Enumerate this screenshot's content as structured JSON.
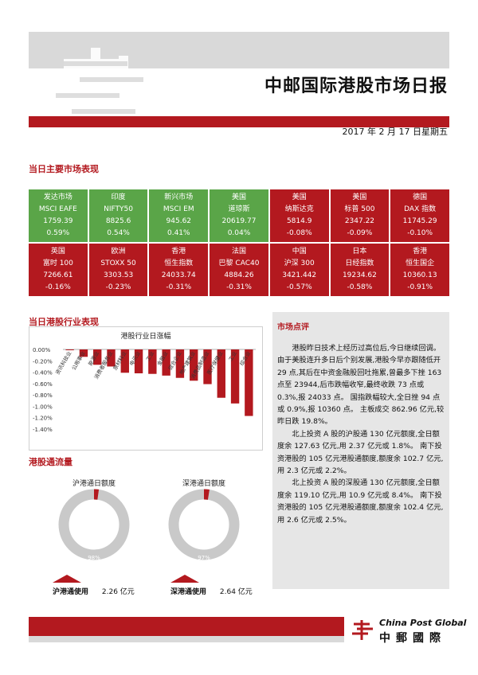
{
  "header": {
    "title": "中邮国际港股市场日报",
    "date": "2017 年 2 月 17 日星期五"
  },
  "sections": {
    "market": "当日主要市场表现",
    "industry": "当日港股行业表现",
    "flow": "港股通流量",
    "comment": "市场点评"
  },
  "markets": [
    {
      "region": "发达市场",
      "index": "MSCI EAFE",
      "value": "1759.39",
      "change": "0.59%",
      "dir": "up"
    },
    {
      "region": "印度",
      "index": "NIFTY50",
      "value": "8825.6",
      "change": "0.54%",
      "dir": "up"
    },
    {
      "region": "新兴市场",
      "index": "MSCI EM",
      "value": "945.62",
      "change": "0.41%",
      "dir": "up"
    },
    {
      "region": "美国",
      "index": "道琼斯",
      "value": "20619.77",
      "change": "0.04%",
      "dir": "up"
    },
    {
      "region": "美国",
      "index": "纳斯达克",
      "value": "5814.9",
      "change": "-0.08%",
      "dir": "down"
    },
    {
      "region": "美国",
      "index": "标普 500",
      "value": "2347.22",
      "change": "-0.09%",
      "dir": "down"
    },
    {
      "region": "德国",
      "index": "DAX 指数",
      "value": "11745.29",
      "change": "-0.10%",
      "dir": "down"
    },
    {
      "region": "英国",
      "index": "富时 100",
      "value": "7266.61",
      "change": "-0.16%",
      "dir": "down"
    },
    {
      "region": "欧洲",
      "index": "STOXX 50",
      "value": "3303.53",
      "change": "-0.23%",
      "dir": "down"
    },
    {
      "region": "香港",
      "index": "恒生指数",
      "value": "24033.74",
      "change": "-0.31%",
      "dir": "down"
    },
    {
      "region": "法国",
      "index": "巴黎 CAC40",
      "value": "4884.26",
      "change": "-0.31%",
      "dir": "down"
    },
    {
      "region": "中国",
      "index": "沪深 300",
      "value": "3421.442",
      "change": "-0.57%",
      "dir": "down"
    },
    {
      "region": "日本",
      "index": "日经指数",
      "value": "19234.62",
      "change": "-0.58%",
      "dir": "down"
    },
    {
      "region": "香港",
      "index": "恒生国企",
      "value": "10360.13",
      "change": "-0.91%",
      "dir": "down"
    }
  ],
  "chart_data": {
    "type": "bar",
    "title": "港股行业日涨幅",
    "categories": [
      "资讯科技业",
      "公用事业",
      "能源业",
      "消费者服务业",
      "原材料业",
      "电讯业",
      "工业",
      "金融业",
      "综合企业",
      "地产建筑业",
      "消费品制造业",
      "医疗保健业",
      "工业",
      "综合业"
    ],
    "values": [
      -0.01,
      -0.13,
      -0.27,
      -0.3,
      -0.41,
      -0.42,
      -0.43,
      -0.46,
      -0.5,
      -0.55,
      -0.61,
      -0.85,
      -0.95,
      -1.17
    ],
    "yticks": [
      "0.00%",
      "-0.20%",
      "-0.40%",
      "-0.60%",
      "-0.80%",
      "-1.00%",
      "-1.20%",
      "-1.40%"
    ],
    "ylim": [
      -1.4,
      0
    ],
    "bar_color": "#b3191f"
  },
  "comment": {
    "paragraphs": [
      "港股昨日技术上经历过高位后,今日继续回调。由于美股连升多日后个别发展,港股今早亦跟随低开 29 点,其后在中资金融股回吐拖累,曾最多下挫 163 点至 23944,后市跌幅收窄,最终收跌 73 点或 0.3%,报 24033 点。 国指跌幅较大,全日挫 94 点或 0.9%,报 10360 点。 主板成交 862.96 亿元,较昨日跌 19.8%。",
      "北上投资 A 股的沪股通 130 亿元额度,全日额度余 127.63 亿元,用 2.37 亿元或 1.8%。 南下投资港股的 105 亿元港股通额度,额度余 102.7 亿元,用 2.3 亿元或 2.2%。",
      "北上投资 A 股的深股通 130 亿元额度,全日额度余 119.10 亿元,用 10.9 亿元或 8.4%。 南下投资港股的 105 亿元港股通额度,额度余 102.4 亿元,用 2.6 亿元或 2.5%。"
    ]
  },
  "flow": {
    "hk_sh": {
      "title": "沪港通日额度",
      "remaining_pct": "98%",
      "used_label": "沪港通使用",
      "used_value": "2.26 亿元",
      "remaining_fraction": 0.978
    },
    "hk_sz": {
      "title": "深港通日额度",
      "remaining_pct": "97%",
      "used_label": "深港通使用",
      "used_value": "2.64 亿元",
      "remaining_fraction": 0.975
    }
  },
  "footer": {
    "brand_en": "China Post Global",
    "brand_zh": "中郵國際"
  },
  "colors": {
    "red": "#b3191f",
    "green": "#5aa548",
    "gray": "#d9d9d9"
  }
}
